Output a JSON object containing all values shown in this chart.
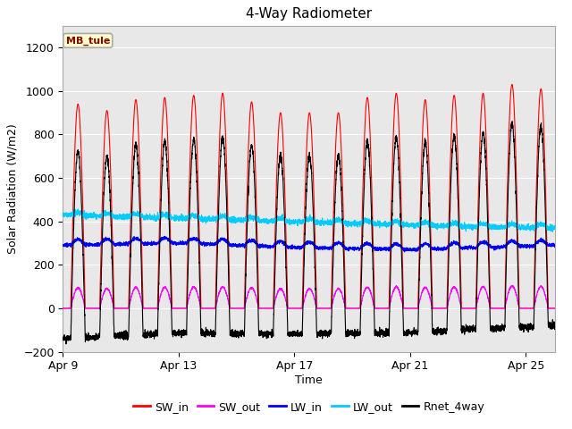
{
  "title": "4-Way Radiometer",
  "xlabel": "Time",
  "ylabel": "Solar Radiation (W/m2)",
  "ylim": [
    -200,
    1300
  ],
  "yticks": [
    -200,
    0,
    200,
    400,
    600,
    800,
    1000,
    1200
  ],
  "annotation": "MB_tule",
  "annotation_bg": "#ffffcc",
  "annotation_border": "#aaaaaa",
  "bg_inner": "#e8e8e8",
  "bg_outer": "#ffffff",
  "legend_items": [
    "SW_in",
    "SW_out",
    "LW_in",
    "LW_out",
    "Rnet_4way"
  ],
  "legend_colors": [
    "#ff0000",
    "#ff00ff",
    "#0000ff",
    "#00ccff",
    "#000000"
  ],
  "n_days": 17,
  "start_day": 9,
  "points_per_day": 288
}
